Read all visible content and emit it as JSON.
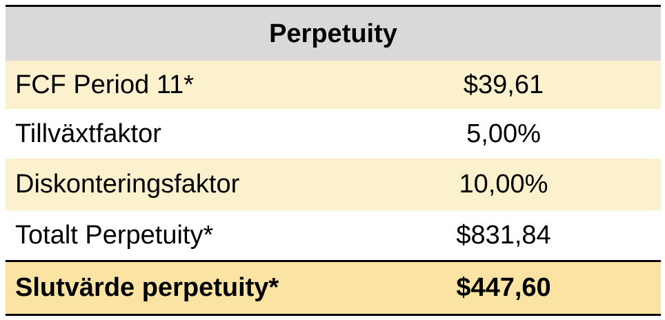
{
  "table": {
    "title": "Perpetuity",
    "rows": [
      [
        "FCF Period 11*",
        "$39,61"
      ],
      [
        "Tillväxtfaktor",
        "5,00%"
      ],
      [
        "Diskonteringsfaktor",
        "10,00%"
      ],
      [
        "Totalt Perpetuity*",
        "$831,84"
      ],
      [
        "Slutvärde perpetuity*",
        "$447,60"
      ]
    ]
  }
}
